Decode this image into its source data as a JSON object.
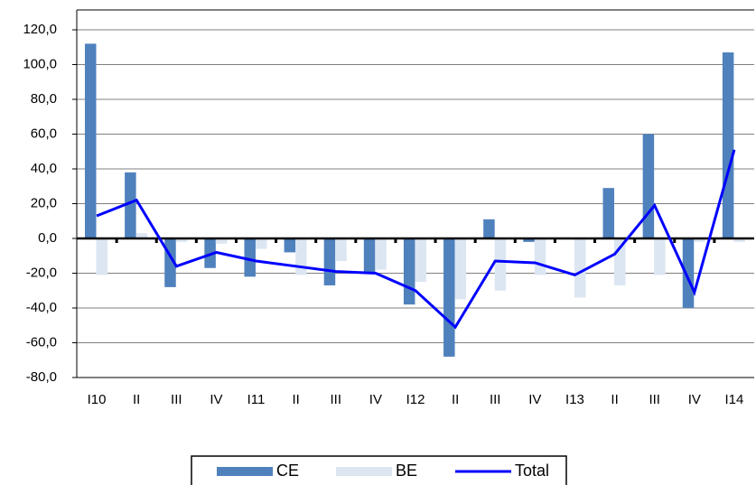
{
  "chart_data": {
    "type": "bar-line",
    "categories": [
      "I10",
      "II",
      "III",
      "IV",
      "I11",
      "II",
      "III",
      "IV",
      "I12",
      "II",
      "III",
      "IV",
      "I13",
      "II",
      "III",
      "IV",
      "I14"
    ],
    "series": [
      {
        "name": "CE",
        "type": "bar",
        "color": "#4f81bd",
        "values": [
          112,
          38,
          -28,
          -17,
          -22,
          -8,
          -27,
          -20,
          -38,
          -68,
          11,
          -2,
          0,
          29,
          60,
          -40,
          107
        ]
      },
      {
        "name": "BE",
        "type": "bar",
        "color": "#dce6f2",
        "values": [
          -21,
          3,
          -2,
          -3,
          -6,
          -21,
          -13,
          -18,
          -25,
          -35,
          -30,
          -21,
          -34,
          -27,
          -21,
          -2,
          -2
        ]
      },
      {
        "name": "Total",
        "type": "line",
        "color": "#0000ff",
        "values": [
          13,
          22,
          -16,
          -8,
          -13,
          -16,
          -19,
          -20,
          -30,
          -51,
          -13,
          -14,
          -21,
          -9,
          19,
          -31,
          51
        ]
      }
    ],
    "ylim": [
      -80,
      120
    ],
    "yticks": [
      {
        "value": -80,
        "label": "-80,0"
      },
      {
        "value": -60,
        "label": "-60,0"
      },
      {
        "value": -40,
        "label": "-40,0"
      },
      {
        "value": -20,
        "label": "-20,0"
      },
      {
        "value": 0,
        "label": "0,0"
      },
      {
        "value": 20,
        "label": "20,0"
      },
      {
        "value": 40,
        "label": "40,0"
      },
      {
        "value": 60,
        "label": "60,0"
      },
      {
        "value": 80,
        "label": "80,0"
      },
      {
        "value": 100,
        "label": "100,0"
      },
      {
        "value": 120,
        "label": "120,0"
      }
    ],
    "grid": true,
    "legend": "bottom"
  }
}
